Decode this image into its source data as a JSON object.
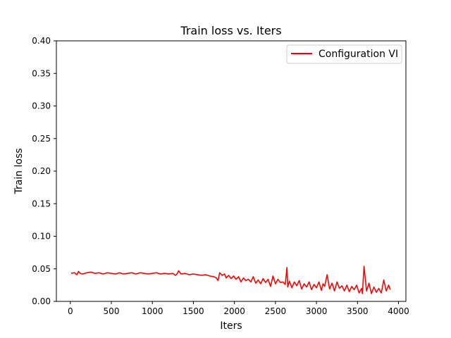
{
  "chart_data": {
    "type": "line",
    "title": "Train loss vs. Iters",
    "xlabel": "Iters",
    "ylabel": "Train loss",
    "xlim": [
      -170,
      4090
    ],
    "ylim": [
      0,
      0.4
    ],
    "xticks": [
      0,
      500,
      1000,
      1500,
      2000,
      2500,
      3000,
      3500,
      4000
    ],
    "yticks": [
      0.0,
      0.05,
      0.1,
      0.15,
      0.2,
      0.25,
      0.3,
      0.35,
      0.4
    ],
    "xtick_labels": [
      "0",
      "500",
      "1000",
      "1500",
      "2000",
      "2500",
      "3000",
      "3500",
      "4000"
    ],
    "ytick_labels": [
      "0.00",
      "0.05",
      "0.10",
      "0.15",
      "0.20",
      "0.25",
      "0.30",
      "0.35",
      "0.40"
    ],
    "grid": false,
    "legend_position": "upper right",
    "series": [
      {
        "name": "Configuration VI",
        "color": "#ff0000",
        "x": [
          10,
          50,
          80,
          100,
          120,
          150,
          200,
          250,
          300,
          350,
          400,
          450,
          500,
          550,
          600,
          650,
          700,
          750,
          800,
          850,
          900,
          950,
          1000,
          1050,
          1100,
          1150,
          1200,
          1250,
          1280,
          1300,
          1320,
          1350,
          1400,
          1450,
          1500,
          1550,
          1600,
          1650,
          1700,
          1750,
          1780,
          1800,
          1820,
          1850,
          1880,
          1900,
          1930,
          1960,
          1990,
          2020,
          2050,
          2080,
          2110,
          2140,
          2170,
          2200,
          2230,
          2260,
          2290,
          2320,
          2350,
          2380,
          2410,
          2440,
          2470,
          2500,
          2530,
          2560,
          2590,
          2620,
          2640,
          2650,
          2670,
          2700,
          2730,
          2760,
          2790,
          2820,
          2850,
          2880,
          2910,
          2940,
          2970,
          3000,
          3030,
          3060,
          3080,
          3100,
          3130,
          3160,
          3190,
          3220,
          3250,
          3280,
          3310,
          3340,
          3370,
          3400,
          3430,
          3460,
          3490,
          3520,
          3550,
          3560,
          3580,
          3610,
          3640,
          3670,
          3700,
          3730,
          3760,
          3790,
          3820,
          3850,
          3880,
          3900
        ],
        "values": [
          0.043,
          0.044,
          0.041,
          0.046,
          0.043,
          0.042,
          0.044,
          0.045,
          0.043,
          0.044,
          0.042,
          0.044,
          0.043,
          0.042,
          0.044,
          0.042,
          0.043,
          0.044,
          0.042,
          0.044,
          0.043,
          0.042,
          0.043,
          0.044,
          0.042,
          0.043,
          0.042,
          0.043,
          0.04,
          0.042,
          0.047,
          0.042,
          0.043,
          0.041,
          0.042,
          0.041,
          0.04,
          0.041,
          0.039,
          0.038,
          0.036,
          0.032,
          0.044,
          0.04,
          0.042,
          0.036,
          0.04,
          0.035,
          0.039,
          0.034,
          0.038,
          0.03,
          0.036,
          0.032,
          0.034,
          0.03,
          0.038,
          0.028,
          0.033,
          0.027,
          0.035,
          0.029,
          0.034,
          0.023,
          0.039,
          0.027,
          0.034,
          0.029,
          0.03,
          0.026,
          0.052,
          0.022,
          0.031,
          0.021,
          0.03,
          0.024,
          0.032,
          0.019,
          0.027,
          0.022,
          0.03,
          0.018,
          0.026,
          0.021,
          0.03,
          0.017,
          0.027,
          0.023,
          0.041,
          0.019,
          0.028,
          0.016,
          0.03,
          0.02,
          0.024,
          0.016,
          0.025,
          0.015,
          0.023,
          0.018,
          0.025,
          0.013,
          0.02,
          0.012,
          0.054,
          0.016,
          0.028,
          0.012,
          0.022,
          0.014,
          0.02,
          0.013,
          0.033,
          0.016,
          0.025,
          0.018
        ]
      }
    ]
  }
}
